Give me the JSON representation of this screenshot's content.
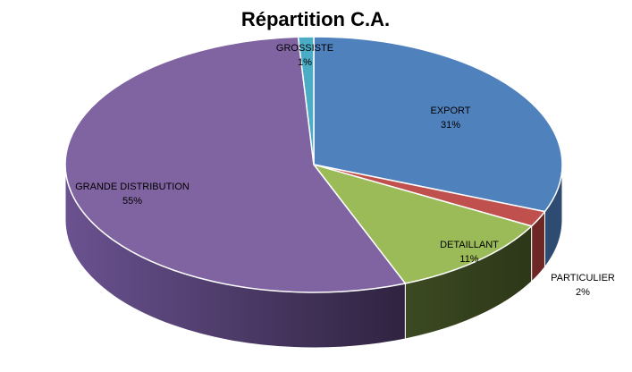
{
  "chart_data": {
    "type": "pie",
    "title": "Répartition C.A.",
    "slices": [
      {
        "label": "EXPORT",
        "value": 31,
        "pct_label": "31%",
        "color": "#4F81BD",
        "side": "#2E4B72"
      },
      {
        "label": "PARTICULIER",
        "value": 2,
        "pct_label": "2%",
        "color": "#C0504D",
        "side": "#6E2725"
      },
      {
        "label": "DETAILLANT",
        "value": 11,
        "pct_label": "11%",
        "color": "#9BBB59",
        "side": "#3C4A22"
      },
      {
        "label": "GRANDE DISTRIBUTION",
        "value": 55,
        "pct_label": "55%",
        "color": "#8064A2",
        "side": "#3F2E55"
      },
      {
        "label": "GROSSISTE",
        "value": 1,
        "pct_label": "1%",
        "color": "#4BACC6",
        "side": "#256676"
      }
    ]
  }
}
